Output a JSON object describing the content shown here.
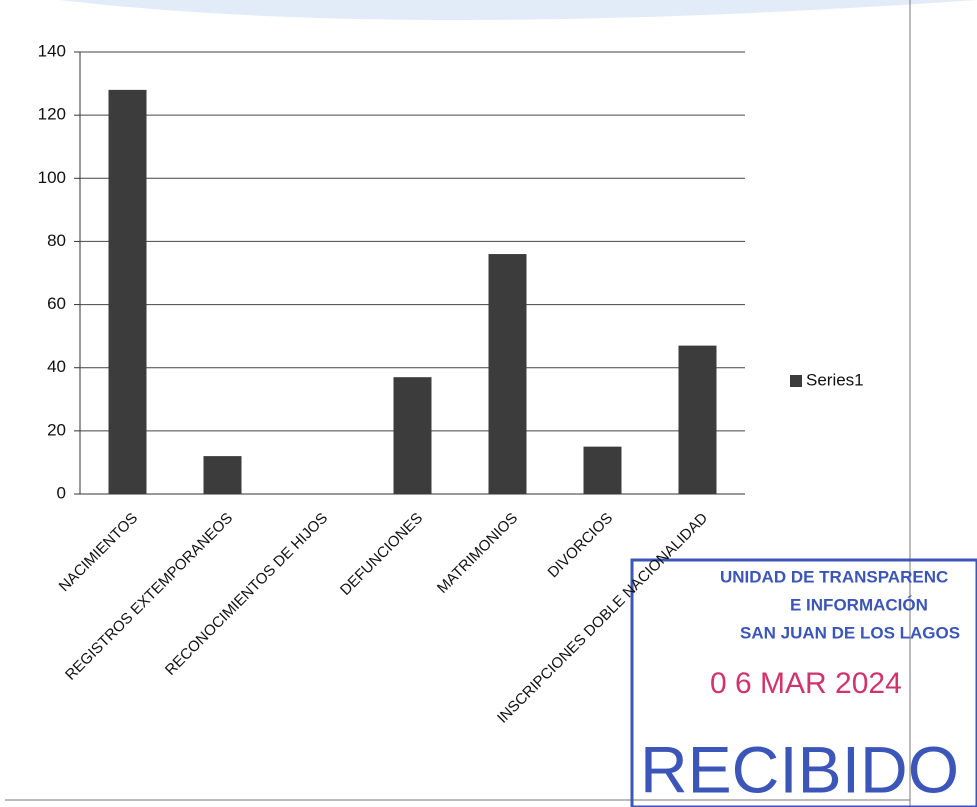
{
  "chart_data": {
    "type": "bar",
    "categories": [
      "NACIMIENTOS",
      "REGISTROS EXTEMPORANEOS",
      "RECONOCIMIENTOS DE HIJOS",
      "DEFUNCIONES",
      "MATRIMONIOS",
      "DIVORCIOS",
      "INSCRIPCIONES DOBLE NACIONALIDAD"
    ],
    "series": [
      {
        "name": "Series1",
        "color": "#3c3c3c",
        "values": [
          128,
          12,
          0,
          37,
          76,
          15,
          47
        ]
      }
    ],
    "ylim": [
      0,
      140
    ],
    "yticks": [
      0,
      20,
      40,
      60,
      80,
      100,
      120,
      140
    ],
    "grid": true,
    "legend": "right",
    "annotations": [
      "UNIDAD DE TRANSPARENC",
      "E INFORMACIÓN",
      "SAN JUAN DE LOS LAGOS",
      "0 6 MAR 2024",
      "RECIBIDO"
    ]
  }
}
